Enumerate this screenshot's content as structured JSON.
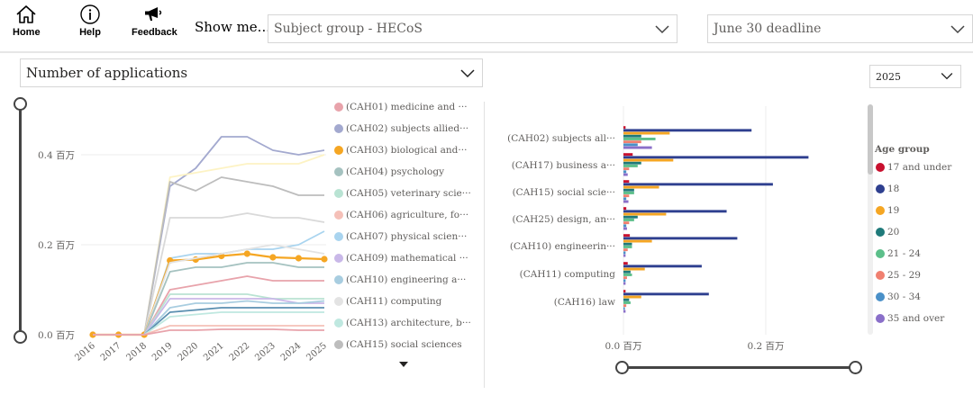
{
  "nav": {
    "home": "Home",
    "help": "Help",
    "feedback": "Feedback"
  },
  "show_me_label": "Show me...",
  "filters": {
    "subject_group": "Subject group - HECoS",
    "deadline": "June 30 deadline",
    "measure": "Number of applications",
    "year": "2025"
  },
  "colors": {
    "accent_orange": "#f5a623",
    "navy": "#2e3f8f"
  },
  "line_chart_legend": [
    {
      "label": "(CAH01) medicine and ···",
      "color": "#e8a3ab"
    },
    {
      "label": "(CAH02) subjects allied···",
      "color": "#a3a9cf"
    },
    {
      "label": "(CAH03) biological and···",
      "color": "#f5a623"
    },
    {
      "label": "(CAH04) psychology",
      "color": "#a5c2c0"
    },
    {
      "label": "(CAH05) veterinary scie···",
      "color": "#b9e3d3"
    },
    {
      "label": "(CAH06) agriculture, fo···",
      "color": "#f5c0b8"
    },
    {
      "label": "(CAH07) physical scien···",
      "color": "#a9d4ef"
    },
    {
      "label": "(CAH09) mathematical ···",
      "color": "#c9b8e8"
    },
    {
      "label": "(CAH10) engineering a···",
      "color": "#a8cde0"
    },
    {
      "label": "(CAH11) computing",
      "color": "#e3e3e3"
    },
    {
      "label": "(CAH13) architecture, b···",
      "color": "#bfe8e0"
    },
    {
      "label": "(CAH15) social sciences",
      "color": "#bdbdbd"
    }
  ],
  "age_legend": {
    "title": "Age group",
    "items": [
      {
        "label": "17 and under",
        "color": "#c8102e"
      },
      {
        "label": "18",
        "color": "#2e3f8f"
      },
      {
        "label": "19",
        "color": "#f5a623"
      },
      {
        "label": "20",
        "color": "#1f7a7a"
      },
      {
        "label": "21 - 24",
        "color": "#5cbf8a"
      },
      {
        "label": "25 - 29",
        "color": "#f08070"
      },
      {
        "label": "30 - 34",
        "color": "#4a90c8"
      },
      {
        "label": "35 and over",
        "color": "#8a6fc9"
      }
    ]
  },
  "chart_data": [
    {
      "type": "line",
      "x": [
        "2016",
        "2017",
        "2018",
        "2019",
        "2020",
        "2021",
        "2022",
        "2023",
        "2024",
        "2025"
      ],
      "y_ticks": [
        "0.0 百万",
        "0.2 百万",
        "0.4 百万"
      ],
      "ylim": [
        0,
        0.5
      ],
      "series": [
        {
          "color": "#a3a9cf",
          "values": [
            0,
            0,
            0,
            0.33,
            0.37,
            0.44,
            0.44,
            0.41,
            0.4,
            0.41
          ]
        },
        {
          "color": "#fdf3c4",
          "values": [
            0,
            0,
            0,
            0.35,
            0.36,
            0.37,
            0.38,
            0.38,
            0.38,
            0.4
          ]
        },
        {
          "color": "#bdbdbd",
          "values": [
            0,
            0,
            0,
            0.34,
            0.32,
            0.35,
            0.34,
            0.33,
            0.31,
            0.31
          ]
        },
        {
          "color": "#d9d9d9",
          "values": [
            0,
            0,
            0,
            0.26,
            0.26,
            0.26,
            0.27,
            0.26,
            0.26,
            0.25
          ]
        },
        {
          "color": "#a9d4ef",
          "values": [
            0,
            0,
            0,
            0.17,
            0.18,
            0.18,
            0.19,
            0.19,
            0.2,
            0.23
          ]
        },
        {
          "color": "#f5a623",
          "marker": true,
          "values": [
            0,
            0,
            0,
            0.165,
            0.167,
            0.175,
            0.18,
            0.172,
            0.17,
            0.168
          ]
        },
        {
          "color": "#e3e3e3",
          "values": [
            0,
            0,
            0,
            0.16,
            0.17,
            0.18,
            0.19,
            0.2,
            0.19,
            0.18
          ]
        },
        {
          "color": "#a5c2c0",
          "values": [
            0,
            0,
            0,
            0.14,
            0.15,
            0.15,
            0.16,
            0.16,
            0.15,
            0.15
          ]
        },
        {
          "color": "#e8a3ab",
          "values": [
            0,
            0,
            0,
            0.1,
            0.11,
            0.12,
            0.13,
            0.12,
            0.12,
            0.12
          ]
        },
        {
          "color": "#b9e3d3",
          "values": [
            0,
            0,
            0,
            0.09,
            0.09,
            0.09,
            0.09,
            0.08,
            0.08,
            0.08
          ]
        },
        {
          "color": "#c9b8e8",
          "values": [
            0,
            0,
            0,
            0.08,
            0.08,
            0.08,
            0.08,
            0.08,
            0.07,
            0.07
          ]
        },
        {
          "color": "#a8cde0",
          "values": [
            0,
            0,
            0,
            0.06,
            0.07,
            0.07,
            0.075,
            0.07,
            0.07,
            0.075
          ]
        },
        {
          "color": "#5a8fb0",
          "values": [
            0,
            0,
            0,
            0.05,
            0.055,
            0.06,
            0.06,
            0.06,
            0.06,
            0.06
          ]
        },
        {
          "color": "#bfe8e0",
          "values": [
            0,
            0,
            0,
            0.04,
            0.045,
            0.05,
            0.05,
            0.05,
            0.05,
            0.05
          ]
        },
        {
          "color": "#f5c0b8",
          "values": [
            0,
            0,
            0,
            0.02,
            0.02,
            0.02,
            0.02,
            0.02,
            0.02,
            0.02
          ]
        },
        {
          "color": "#e8a3ab",
          "values": [
            0,
            0,
            0,
            0.01,
            0.01,
            0.012,
            0.012,
            0.012,
            0.01,
            0.01
          ]
        }
      ]
    },
    {
      "type": "bar",
      "orientation": "horizontal",
      "categories": [
        "(CAH02) subjects all···",
        "(CAH17) business a···",
        "(CAH15) social scie···",
        "(CAH25) design, an···",
        "(CAH10) engineerin···",
        "(CAH11) computing",
        "(CAH16) law"
      ],
      "x_ticks": [
        "0.0 百万",
        "0.2 百万"
      ],
      "xlim": [
        0,
        0.32
      ],
      "series": [
        {
          "name": "17 and under",
          "values": [
            0.003,
            0.013,
            0.008,
            0.004,
            0.009,
            0.006,
            0.003
          ]
        },
        {
          "name": "18",
          "values": [
            0.18,
            0.26,
            0.21,
            0.145,
            0.16,
            0.11,
            0.12
          ]
        },
        {
          "name": "19",
          "values": [
            0.065,
            0.07,
            0.05,
            0.06,
            0.04,
            0.03,
            0.025
          ]
        },
        {
          "name": "20",
          "values": [
            0.025,
            0.025,
            0.015,
            0.02,
            0.012,
            0.01,
            0.008
          ]
        },
        {
          "name": "21 - 24",
          "values": [
            0.045,
            0.02,
            0.015,
            0.015,
            0.012,
            0.012,
            0.01
          ]
        },
        {
          "name": "25 - 29",
          "values": [
            0.025,
            0.008,
            0.008,
            0.008,
            0.006,
            0.005,
            0.004
          ]
        },
        {
          "name": "30 - 34",
          "values": [
            0.02,
            0.004,
            0.004,
            0.004,
            0.003,
            0.003,
            0.002
          ]
        },
        {
          "name": "35 and over",
          "values": [
            0.04,
            0.006,
            0.007,
            0.005,
            0.003,
            0.003,
            0.003
          ]
        }
      ]
    }
  ]
}
